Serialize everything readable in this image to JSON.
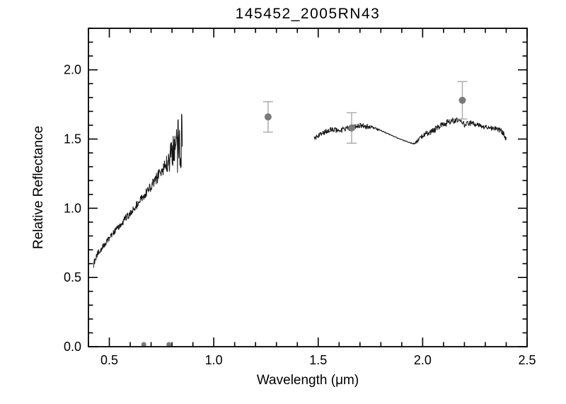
{
  "page": {
    "background": "#ffffff"
  },
  "chart_data": {
    "type": "line",
    "title": "145452_2005RN43",
    "xlabel": "Wavelength (μm)",
    "ylabel": "Relative Reflectance",
    "xlim": [
      0.4,
      2.5
    ],
    "ylim": [
      0.0,
      2.3
    ],
    "xticks_major": [
      0.5,
      1.0,
      1.5,
      2.0,
      2.5
    ],
    "yticks_major": [
      0.0,
      0.5,
      1.0,
      1.5,
      2.0
    ],
    "minor_tick_step": 0.1,
    "grid": false,
    "legend": "none",
    "frame_color": "#000000",
    "line_color": "#161616",
    "point_color": "#7a7a7a",
    "errorbar_color": "#a8a8a8",
    "series": [
      {
        "name": "visible-spectrum",
        "description": "noisy rising visible spectrum 0.43-0.85 um, noise grows toward red end",
        "anchors": [
          [
            0.425,
            0.615,
            0.045
          ],
          [
            0.44,
            0.665,
            0.025
          ],
          [
            0.46,
            0.705,
            0.02
          ],
          [
            0.48,
            0.745,
            0.02
          ],
          [
            0.5,
            0.785,
            0.02
          ],
          [
            0.52,
            0.825,
            0.022
          ],
          [
            0.55,
            0.875,
            0.025
          ],
          [
            0.58,
            0.93,
            0.028
          ],
          [
            0.6,
            0.965,
            0.03
          ],
          [
            0.63,
            1.02,
            0.03
          ],
          [
            0.66,
            1.08,
            0.032
          ],
          [
            0.69,
            1.14,
            0.035
          ],
          [
            0.72,
            1.2,
            0.04
          ],
          [
            0.75,
            1.27,
            0.05
          ],
          [
            0.77,
            1.31,
            0.06
          ],
          [
            0.79,
            1.36,
            0.095
          ],
          [
            0.81,
            1.42,
            0.14
          ],
          [
            0.83,
            1.45,
            0.21
          ],
          [
            0.85,
            1.455,
            0.26
          ]
        ]
      },
      {
        "name": "nir-spectrum",
        "description": "near-infrared spectrum 1.48-2.40 um with smooth interpolated gap 1.8-1.98",
        "anchors": [
          [
            1.48,
            1.505,
            0.018
          ],
          [
            1.51,
            1.535,
            0.018
          ],
          [
            1.54,
            1.555,
            0.018
          ],
          [
            1.57,
            1.57,
            0.018
          ],
          [
            1.6,
            1.56,
            0.018
          ],
          [
            1.63,
            1.575,
            0.02
          ],
          [
            1.66,
            1.585,
            0.02
          ],
          [
            1.69,
            1.6,
            0.02
          ],
          [
            1.72,
            1.595,
            0.02
          ],
          [
            1.75,
            1.585,
            0.018
          ],
          [
            1.78,
            1.57,
            0.01
          ],
          [
            1.81,
            1.555,
            0.004
          ],
          [
            1.86,
            1.52,
            0.003
          ],
          [
            1.91,
            1.49,
            0.003
          ],
          [
            1.955,
            1.465,
            0.004
          ],
          [
            1.98,
            1.49,
            0.015
          ],
          [
            2.01,
            1.535,
            0.02
          ],
          [
            2.05,
            1.56,
            0.022
          ],
          [
            2.09,
            1.6,
            0.022
          ],
          [
            2.13,
            1.625,
            0.025
          ],
          [
            2.17,
            1.635,
            0.022
          ],
          [
            2.2,
            1.605,
            0.02
          ],
          [
            2.23,
            1.615,
            0.02
          ],
          [
            2.27,
            1.6,
            0.02
          ],
          [
            2.31,
            1.585,
            0.02
          ],
          [
            2.35,
            1.575,
            0.02
          ],
          [
            2.38,
            1.555,
            0.02
          ],
          [
            2.4,
            1.5,
            0.02
          ]
        ]
      }
    ],
    "photometry_points": [
      {
        "x": 1.26,
        "y": 1.66,
        "err": 0.11
      },
      {
        "x": 1.66,
        "y": 1.58,
        "err": 0.11
      },
      {
        "x": 2.19,
        "y": 1.78,
        "err": 0.135
      }
    ],
    "baseline_points": [
      {
        "x": 0.665,
        "y": 0.0
      },
      {
        "x": 0.785,
        "y": 0.0
      }
    ]
  }
}
